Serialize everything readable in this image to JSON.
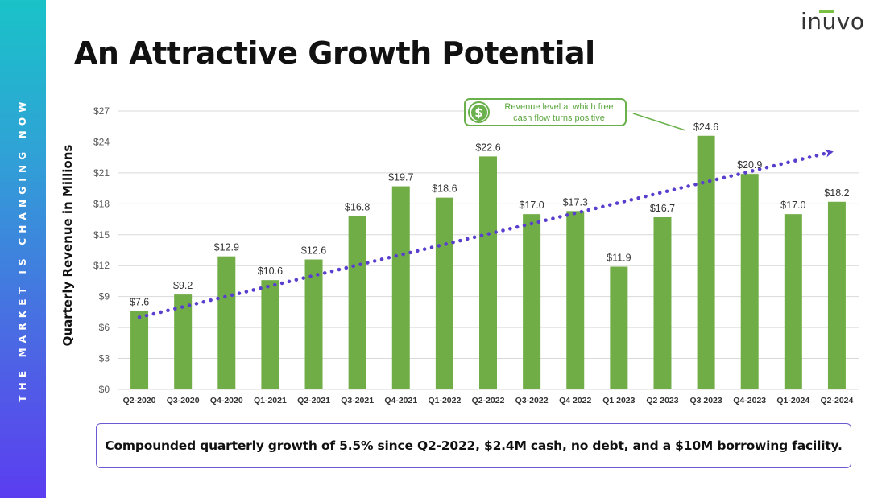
{
  "sidebar": {
    "text": "THE MARKET IS CHANGING NOW"
  },
  "logo": {
    "text": "inuvo"
  },
  "title": "An Attractive Growth Potential",
  "callout": {
    "icon": "dollar-icon",
    "icon_symbol": "$",
    "line1": "Revenue level at which free",
    "line2": "cash flow turns positive"
  },
  "summary": "Compounded quarterly growth of 5.5% since Q2-2022, $2.4M cash, no debt, and a $10M borrowing facility.",
  "colors": {
    "bar": "#70ad47",
    "trend": "#5a3fcf",
    "accent_green": "#6ab04c",
    "box_border": "#6a5ad2"
  },
  "chart_data": {
    "type": "bar",
    "title": "",
    "xlabel": "",
    "ylabel": "Quarterly Revenue in Millions",
    "categories": [
      "Q2-2020",
      "Q3-2020",
      "Q4-2020",
      "Q1-2021",
      "Q2-2021",
      "Q3-2021",
      "Q4-2021",
      "Q1-2022",
      "Q2-2022",
      "Q3-2022",
      "Q4 2022",
      "Q1 2023",
      "Q2 2023",
      "Q3 2023",
      "Q4-2023",
      "Q1-2024",
      "Q2-2024"
    ],
    "values": [
      7.6,
      9.2,
      12.9,
      10.6,
      12.6,
      16.8,
      19.7,
      18.6,
      22.6,
      17.0,
      17.3,
      11.9,
      16.7,
      24.6,
      20.9,
      17.0,
      18.2
    ],
    "data_labels": [
      "$7.6",
      "$9.2",
      "$12.9",
      "$10.6",
      "$12.6",
      "$16.8",
      "$19.7",
      "$18.6",
      "$22.6",
      "$17.0",
      "$17.3",
      "$11.9",
      "$16.7",
      "$24.6",
      "$20.9",
      "$17.0",
      "$18.2"
    ],
    "ylim": [
      0,
      27
    ],
    "yticks": [
      0,
      3,
      6,
      9,
      12,
      15,
      18,
      21,
      24,
      27
    ],
    "ytick_labels": [
      "$0",
      "$3",
      "$6",
      "$9",
      "$12",
      "$15",
      "$18",
      "$21",
      "$24",
      "$27"
    ],
    "grid": true,
    "legend": "none",
    "trendline": {
      "style": "dotted-arrow",
      "start_value": 7.0,
      "end_value": 23.0
    }
  }
}
